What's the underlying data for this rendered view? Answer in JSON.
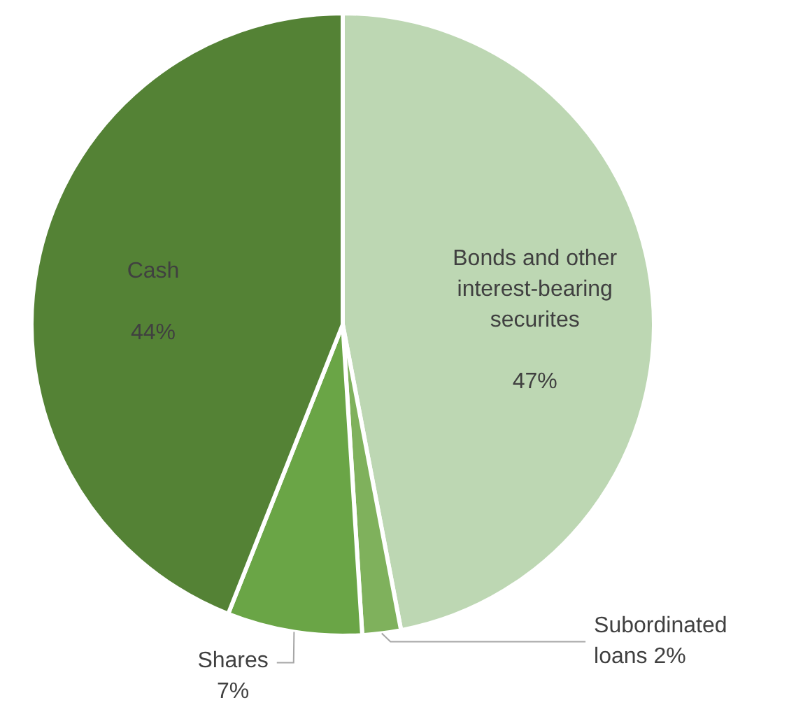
{
  "chart_data": {
    "type": "pie",
    "categories": [
      "Bonds and other interest-bearing securites",
      "Subordinated loans",
      "Shares",
      "Cash"
    ],
    "values": [
      47,
      2,
      7,
      44
    ],
    "colors": [
      "#bdd7b3",
      "#7fb15c",
      "#6aa546",
      "#548235"
    ],
    "value_labels": [
      "47%",
      "2%",
      "7%",
      "44%"
    ],
    "legend": false
  }
}
